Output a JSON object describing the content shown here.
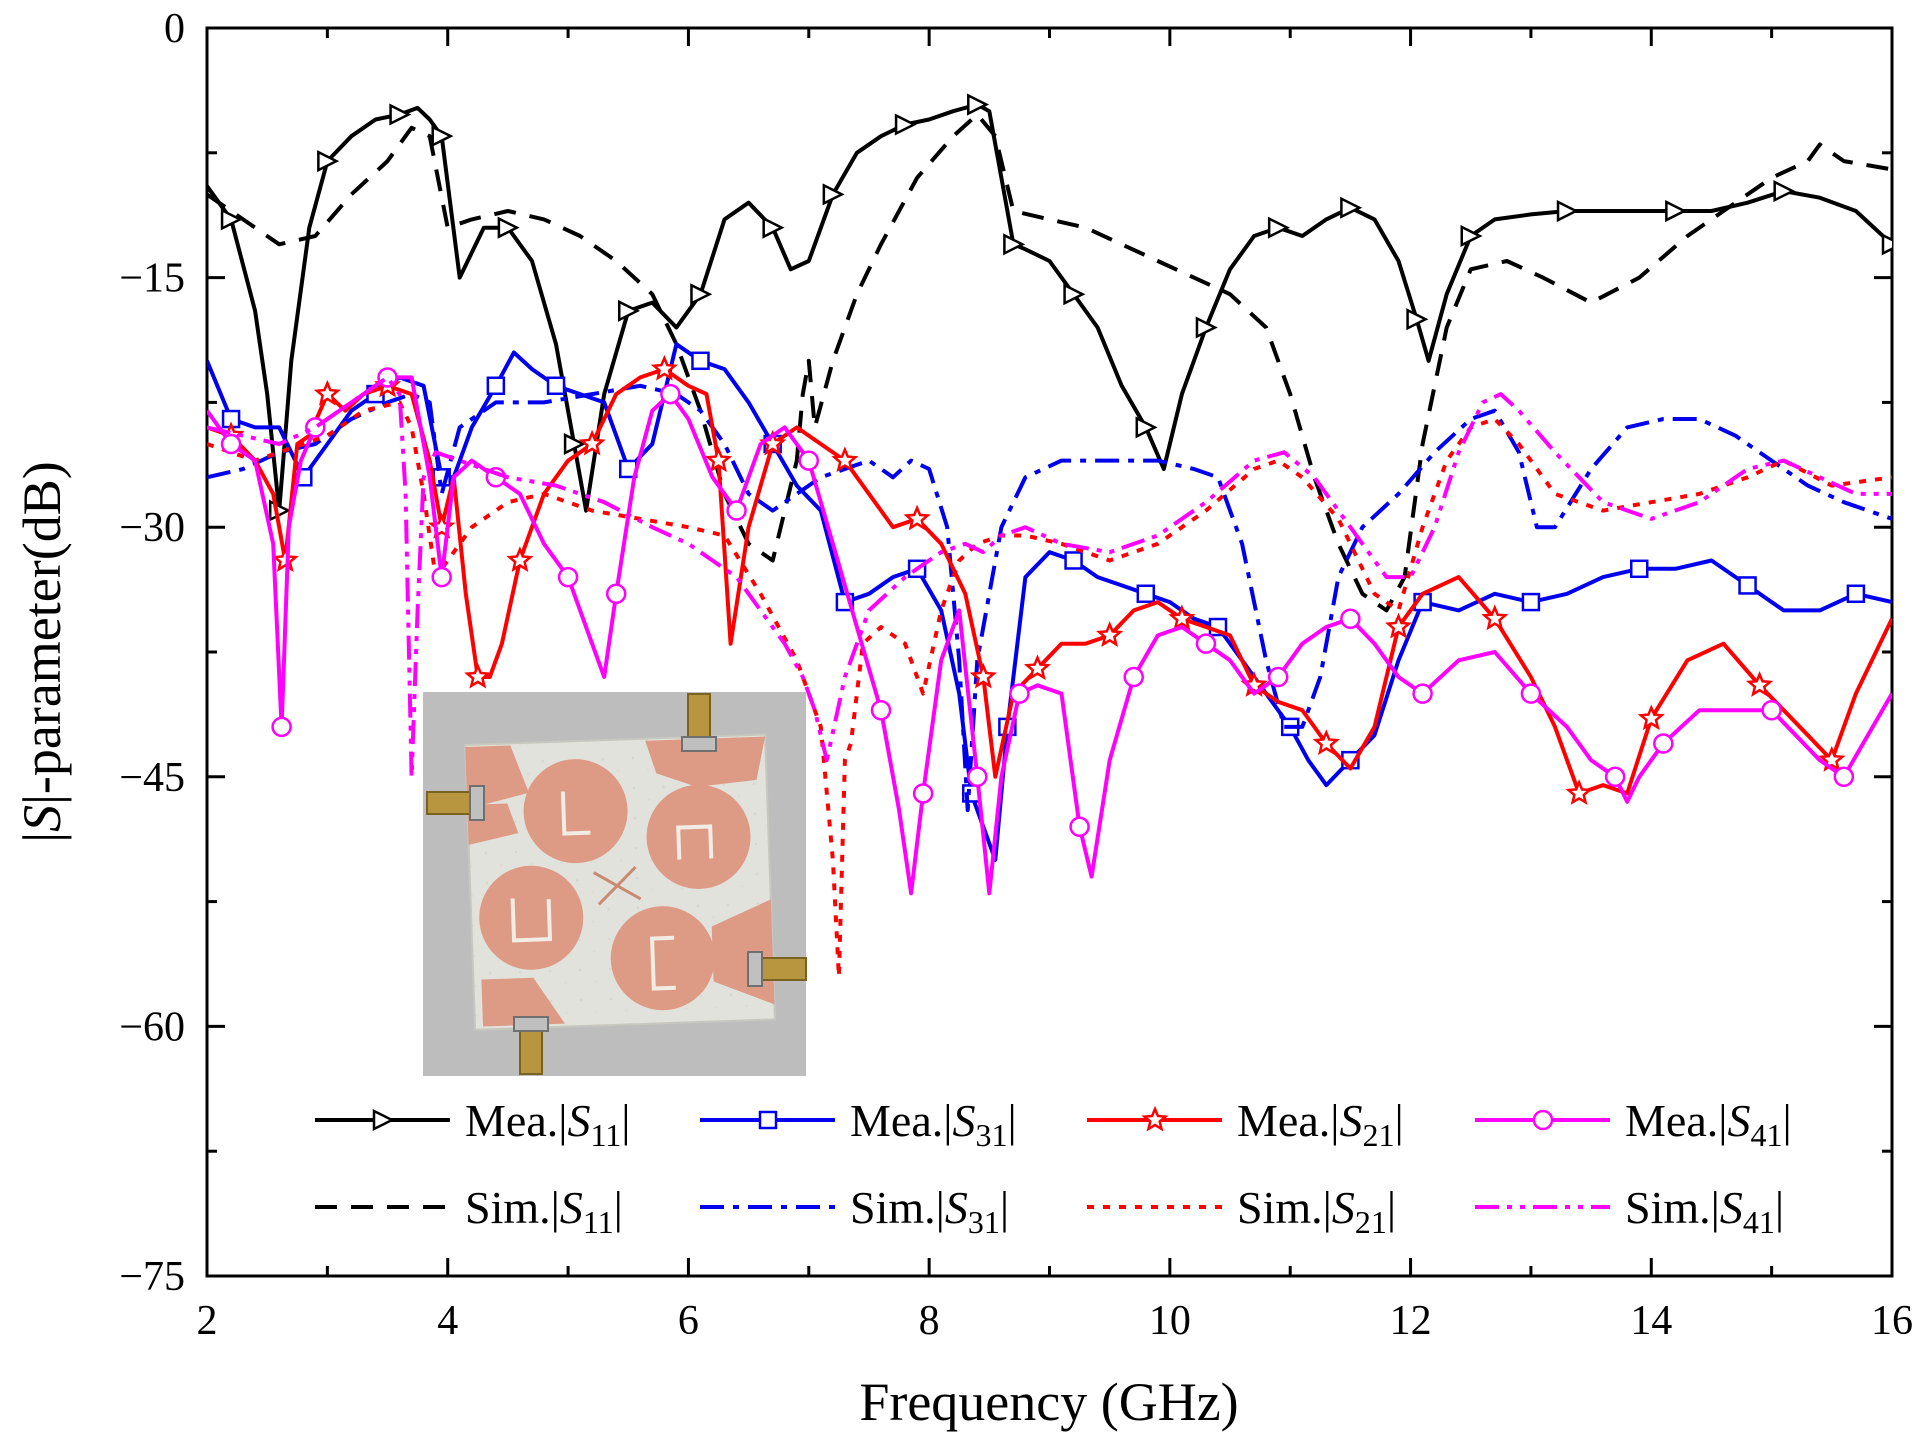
{
  "chart_data": {
    "type": "line",
    "xlabel": "Frequency (GHz)",
    "ylabel_parts": {
      "pre": "|",
      "italic": "S",
      "post": "|-parameter(dB)"
    },
    "xlim": [
      2,
      16
    ],
    "ylim": [
      -75,
      0
    ],
    "xticks": [
      2,
      4,
      6,
      8,
      10,
      12,
      14,
      16
    ],
    "yticks": [
      0,
      -15,
      -30,
      -45,
      -60,
      -75
    ],
    "ytick_labels": [
      "0",
      "−15",
      "−30",
      "−45",
      "−60",
      "−75"
    ],
    "grid": false,
    "legend_position": "bottom-right",
    "inset": "photograph of fabricated four-port antenna",
    "series": [
      {
        "id": "mea_s11",
        "prefix": "Mea.|",
        "sym": "S",
        "sub": "11",
        "suffix": "|",
        "color": "#000000",
        "dash": "solid",
        "marker": "triangle-right",
        "x": [
          2.0,
          2.2,
          2.4,
          2.5,
          2.6,
          2.7,
          2.85,
          3.0,
          3.2,
          3.4,
          3.6,
          3.75,
          3.85,
          3.95,
          4.1,
          4.3,
          4.5,
          4.7,
          4.9,
          5.05,
          5.15,
          5.3,
          5.5,
          5.7,
          5.9,
          6.1,
          6.3,
          6.5,
          6.7,
          6.85,
          7.0,
          7.2,
          7.4,
          7.6,
          7.8,
          8.0,
          8.2,
          8.4,
          8.5,
          8.6,
          8.7,
          8.8,
          9.0,
          9.2,
          9.4,
          9.6,
          9.8,
          9.95,
          10.1,
          10.3,
          10.5,
          10.7,
          10.9,
          11.1,
          11.3,
          11.5,
          11.7,
          11.9,
          12.05,
          12.15,
          12.3,
          12.5,
          12.7,
          13.0,
          13.3,
          13.6,
          13.9,
          14.2,
          14.5,
          14.8,
          15.1,
          15.4,
          15.7,
          16.0
        ],
        "y": [
          -9.5,
          -11.5,
          -17,
          -22,
          -29,
          -20,
          -12,
          -8,
          -6.5,
          -5.5,
          -5.2,
          -4.8,
          -5.5,
          -6.5,
          -15,
          -12,
          -12,
          -14,
          -19,
          -25,
          -29,
          -22,
          -17,
          -16.5,
          -18,
          -16,
          -11.5,
          -10.5,
          -12,
          -14.5,
          -14,
          -10,
          -7.5,
          -6.5,
          -5.8,
          -5.5,
          -5.0,
          -4.6,
          -5.0,
          -9,
          -13,
          -13.3,
          -14,
          -16,
          -18,
          -21.5,
          -24,
          -26.5,
          -22,
          -18,
          -14.5,
          -12.5,
          -12,
          -12.5,
          -11.5,
          -10.8,
          -11.5,
          -14,
          -17.5,
          -20,
          -16,
          -12.5,
          -11.5,
          -11.2,
          -11,
          -11,
          -11,
          -11,
          -11,
          -10.5,
          -9.8,
          -10.2,
          -11,
          -13
        ]
      },
      {
        "id": "sim_s11",
        "prefix": "Sim.|",
        "sym": "S",
        "sub": "11",
        "suffix": "|",
        "color": "#000000",
        "dash": "dash",
        "marker": "none",
        "x": [
          2.0,
          2.3,
          2.6,
          2.9,
          3.2,
          3.5,
          3.7,
          3.85,
          4.0,
          4.2,
          4.5,
          4.8,
          5.1,
          5.4,
          5.7,
          5.9,
          6.1,
          6.3,
          6.5,
          6.7,
          6.9,
          6.95,
          7.0,
          7.05,
          7.2,
          7.4,
          7.6,
          7.9,
          8.2,
          8.4,
          8.55,
          8.7,
          9.0,
          9.3,
          9.6,
          9.9,
          10.2,
          10.5,
          10.8,
          11.0,
          11.2,
          11.4,
          11.6,
          11.8,
          11.95,
          12.1,
          12.3,
          12.5,
          12.8,
          13.1,
          13.5,
          13.9,
          14.3,
          14.7,
          15.0,
          15.3,
          15.4,
          15.6,
          16.0
        ],
        "y": [
          -10,
          -11.5,
          -13,
          -12.5,
          -10,
          -8,
          -6,
          -6.5,
          -12,
          -11.5,
          -11,
          -11.5,
          -12.5,
          -14,
          -16,
          -19,
          -23,
          -28,
          -31,
          -32,
          -26,
          -22,
          -20,
          -24,
          -20,
          -16,
          -13,
          -9,
          -6.5,
          -5.2,
          -6.5,
          -11,
          -11.5,
          -12,
          -13,
          -14,
          -15,
          -16,
          -18,
          -22,
          -27,
          -31,
          -34,
          -35,
          -33,
          -25,
          -18,
          -14.5,
          -14,
          -15,
          -16.5,
          -15,
          -12.5,
          -10.5,
          -9,
          -8,
          -7,
          -8,
          -8.5
        ]
      },
      {
        "id": "mea_s31",
        "prefix": "Mea.|",
        "sym": "S",
        "sub": "31",
        "suffix": "|",
        "color": "#0000ee",
        "dash": "solid",
        "marker": "square",
        "x": [
          2.0,
          2.2,
          2.4,
          2.6,
          2.8,
          3.0,
          3.2,
          3.4,
          3.6,
          3.8,
          3.95,
          4.05,
          4.2,
          4.4,
          4.55,
          4.7,
          4.9,
          5.1,
          5.3,
          5.5,
          5.7,
          5.9,
          6.1,
          6.3,
          6.5,
          6.7,
          6.9,
          7.1,
          7.3,
          7.5,
          7.7,
          7.9,
          8.1,
          8.25,
          8.35,
          8.45,
          8.55,
          8.65,
          8.8,
          9.0,
          9.2,
          9.4,
          9.6,
          9.8,
          10.0,
          10.2,
          10.4,
          10.6,
          10.8,
          11.0,
          11.15,
          11.3,
          11.5,
          11.7,
          11.9,
          12.1,
          12.4,
          12.7,
          13.0,
          13.3,
          13.6,
          13.9,
          14.2,
          14.5,
          14.8,
          15.1,
          15.4,
          15.7,
          16.0
        ],
        "y": [
          -20,
          -23.5,
          -24,
          -24,
          -27,
          -25,
          -23,
          -22,
          -21,
          -21.5,
          -27,
          -27,
          -24,
          -21.5,
          -19.5,
          -20.5,
          -21.5,
          -22,
          -22.5,
          -26.5,
          -25,
          -19,
          -20,
          -20.5,
          -22.5,
          -25,
          -27.5,
          -29,
          -34.5,
          -34,
          -33,
          -32.5,
          -35,
          -40,
          -46,
          -48,
          -50,
          -42,
          -33,
          -31.5,
          -32,
          -33,
          -33.5,
          -34,
          -34.5,
          -35.5,
          -36,
          -38,
          -40,
          -42,
          -44,
          -45.5,
          -44,
          -42.5,
          -38,
          -34.5,
          -35,
          -34,
          -34.5,
          -34,
          -33,
          -32.5,
          -32.5,
          -32,
          -33.5,
          -35,
          -35,
          -34,
          -34.5
        ]
      },
      {
        "id": "sim_s31",
        "prefix": "Sim.|",
        "sym": "S",
        "sub": "31",
        "suffix": "|",
        "color": "#0000ee",
        "dash": "dashdot",
        "marker": "none",
        "x": [
          2.0,
          2.3,
          2.6,
          2.9,
          3.2,
          3.5,
          3.7,
          3.85,
          3.95,
          4.1,
          4.4,
          4.8,
          5.2,
          5.6,
          5.9,
          6.1,
          6.3,
          6.5,
          6.7,
          6.9,
          7.1,
          7.3,
          7.5,
          7.7,
          7.85,
          8.0,
          8.15,
          8.25,
          8.32,
          8.4,
          8.6,
          8.8,
          9.1,
          9.5,
          9.9,
          10.2,
          10.4,
          10.6,
          10.8,
          10.95,
          11.1,
          11.25,
          11.4,
          11.6,
          11.9,
          12.2,
          12.5,
          12.7,
          12.9,
          13.05,
          13.2,
          13.5,
          13.8,
          14.1,
          14.4,
          14.7,
          15.0,
          15.3,
          15.6,
          16.0
        ],
        "y": [
          -27,
          -26.5,
          -25.5,
          -25,
          -23.5,
          -22.5,
          -22,
          -22.5,
          -28,
          -24,
          -22.5,
          -22.5,
          -22,
          -21.5,
          -22,
          -23,
          -25,
          -28,
          -29,
          -28,
          -27,
          -26.5,
          -26,
          -27,
          -26,
          -26.5,
          -30,
          -38,
          -47,
          -38,
          -30,
          -27,
          -26,
          -26,
          -26,
          -26.5,
          -27,
          -31,
          -38,
          -42,
          -42,
          -39,
          -33,
          -30,
          -28,
          -25.5,
          -23.5,
          -23,
          -25.5,
          -30,
          -30,
          -26.5,
          -24,
          -23.5,
          -23.5,
          -24.5,
          -26,
          -27.5,
          -28.5,
          -29.5
        ]
      },
      {
        "id": "mea_s21",
        "prefix": "Mea.|",
        "sym": "S",
        "sub": "21",
        "suffix": "|",
        "color": "#ff0000",
        "dash": "solid",
        "marker": "star",
        "x": [
          2.0,
          2.2,
          2.4,
          2.55,
          2.65,
          2.75,
          2.85,
          3.0,
          3.15,
          3.3,
          3.5,
          3.7,
          3.85,
          3.95,
          4.05,
          4.15,
          4.25,
          4.35,
          4.45,
          4.6,
          4.8,
          5.0,
          5.2,
          5.4,
          5.6,
          5.8,
          6.0,
          6.15,
          6.25,
          6.35,
          6.5,
          6.7,
          6.9,
          7.1,
          7.3,
          7.5,
          7.7,
          7.9,
          8.1,
          8.3,
          8.45,
          8.55,
          8.7,
          8.9,
          9.1,
          9.3,
          9.5,
          9.7,
          9.9,
          10.1,
          10.3,
          10.5,
          10.7,
          10.9,
          11.1,
          11.3,
          11.5,
          11.7,
          11.9,
          12.1,
          12.4,
          12.7,
          13.0,
          13.2,
          13.4,
          13.6,
          13.8,
          14.0,
          14.3,
          14.6,
          14.9,
          15.1,
          15.3,
          15.5,
          15.7,
          16.0
        ],
        "y": [
          -24,
          -24.5,
          -26,
          -28,
          -32,
          -25,
          -24.5,
          -22,
          -23,
          -22,
          -21.5,
          -22,
          -26,
          -30,
          -27,
          -34,
          -39,
          -39,
          -37,
          -32,
          -28,
          -26,
          -25,
          -22,
          -21,
          -20.5,
          -21.5,
          -22,
          -26,
          -37,
          -30,
          -25,
          -24,
          -25,
          -26,
          -28,
          -30,
          -29.5,
          -31,
          -34,
          -39,
          -45,
          -40,
          -38.5,
          -37,
          -37,
          -36.5,
          -35,
          -34.5,
          -35.5,
          -36,
          -36.5,
          -39.5,
          -40.5,
          -41,
          -43,
          -44.5,
          -42,
          -36,
          -34,
          -33,
          -35.5,
          -39,
          -42,
          -46,
          -45.5,
          -46,
          -41.5,
          -38,
          -37,
          -39.5,
          -41,
          -42.5,
          -44,
          -40,
          -35.5
        ]
      },
      {
        "id": "sim_s21",
        "prefix": "Sim.|",
        "sym": "S",
        "sub": "21",
        "suffix": "|",
        "color": "#ff0000",
        "dash": "dot",
        "marker": "none",
        "x": [
          2.0,
          2.2,
          2.4,
          2.6,
          2.8,
          3.0,
          3.3,
          3.6,
          3.7,
          3.8,
          3.9,
          4.0,
          4.2,
          4.5,
          4.8,
          5.2,
          5.6,
          6.0,
          6.3,
          6.6,
          6.9,
          7.1,
          7.2,
          7.25,
          7.3,
          7.35,
          7.45,
          7.6,
          7.8,
          7.95,
          8.1,
          8.25,
          8.4,
          8.6,
          8.8,
          9.1,
          9.5,
          9.9,
          10.3,
          10.7,
          10.9,
          11.1,
          11.4,
          11.7,
          11.9,
          12.1,
          12.3,
          12.5,
          12.7,
          12.9,
          13.2,
          13.6,
          14.0,
          14.4,
          14.8,
          15.1,
          15.5,
          16.0
        ],
        "y": [
          -25,
          -25.5,
          -26,
          -25.5,
          -25,
          -24.5,
          -23,
          -22.5,
          -24,
          -28,
          -33,
          -32,
          -30,
          -28.5,
          -28,
          -29,
          -29.5,
          -30,
          -30.5,
          -34,
          -38,
          -42,
          -50,
          -57,
          -44,
          -43,
          -37,
          -36,
          -37,
          -40,
          -35,
          -32,
          -31,
          -30.5,
          -30.5,
          -31,
          -32,
          -31,
          -29,
          -26.5,
          -26,
          -27,
          -29.5,
          -34,
          -35,
          -30,
          -26,
          -24,
          -23.5,
          -25,
          -28,
          -29,
          -28.5,
          -28,
          -27,
          -26,
          -27.5,
          -27
        ]
      },
      {
        "id": "mea_s41",
        "prefix": "Mea.|",
        "sym": "S",
        "sub": "41",
        "suffix": "|",
        "color": "#ff00ff",
        "dash": "solid",
        "marker": "circle",
        "x": [
          2.0,
          2.2,
          2.4,
          2.55,
          2.62,
          2.68,
          2.78,
          2.9,
          3.1,
          3.3,
          3.5,
          3.7,
          3.85,
          3.95,
          4.05,
          4.2,
          4.4,
          4.6,
          4.8,
          5.0,
          5.2,
          5.3,
          5.4,
          5.55,
          5.7,
          5.85,
          6.0,
          6.2,
          6.4,
          6.6,
          6.8,
          7.0,
          7.2,
          7.4,
          7.6,
          7.75,
          7.85,
          7.95,
          8.1,
          8.25,
          8.4,
          8.5,
          8.6,
          8.75,
          8.9,
          9.1,
          9.25,
          9.35,
          9.5,
          9.7,
          9.9,
          10.1,
          10.3,
          10.5,
          10.7,
          10.9,
          11.1,
          11.3,
          11.5,
          11.7,
          11.9,
          12.1,
          12.4,
          12.7,
          13.0,
          13.3,
          13.5,
          13.7,
          13.8,
          13.9,
          14.1,
          14.4,
          14.7,
          15.0,
          15.2,
          15.4,
          15.6,
          15.8,
          16.0
        ],
        "y": [
          -23,
          -25,
          -26,
          -31,
          -42,
          -30,
          -26,
          -24,
          -23,
          -22,
          -21,
          -21,
          -27,
          -33,
          -27,
          -26,
          -27,
          -28,
          -31,
          -33,
          -37,
          -39,
          -34,
          -27,
          -23,
          -22,
          -23.5,
          -27,
          -29,
          -25,
          -24,
          -26,
          -31,
          -36,
          -41,
          -47,
          -52,
          -46,
          -38,
          -35,
          -45,
          -52,
          -45,
          -40,
          -39.5,
          -40,
          -48,
          -51,
          -44,
          -39,
          -36.5,
          -36,
          -37,
          -38,
          -40,
          -39,
          -37,
          -36,
          -35.5,
          -37,
          -39,
          -40,
          -38,
          -37.5,
          -40,
          -42,
          -44,
          -45,
          -46.5,
          -45,
          -43,
          -41,
          -41,
          -41,
          -42.5,
          -44,
          -45,
          -42.5,
          -40
        ]
      },
      {
        "id": "sim_s41",
        "prefix": "Sim.|",
        "sym": "S",
        "sub": "41",
        "suffix": "|",
        "color": "#ff00ff",
        "dash": "dashdotdot",
        "marker": "none",
        "x": [
          2.0,
          2.3,
          2.6,
          2.9,
          3.2,
          3.5,
          3.6,
          3.65,
          3.7,
          3.75,
          3.8,
          3.9,
          4.1,
          4.5,
          4.9,
          5.3,
          5.7,
          6.0,
          6.2,
          6.4,
          6.6,
          6.8,
          6.95,
          7.05,
          7.15,
          7.3,
          7.5,
          7.8,
          8.1,
          8.3,
          8.45,
          8.6,
          8.8,
          9.1,
          9.5,
          9.9,
          10.3,
          10.7,
          10.95,
          11.2,
          11.5,
          11.8,
          12.0,
          12.2,
          12.4,
          12.6,
          12.75,
          12.9,
          13.2,
          13.6,
          14.0,
          14.4,
          14.8,
          15.1,
          15.4,
          15.7,
          16.0
        ],
        "y": [
          -24,
          -24.5,
          -25,
          -24,
          -22.5,
          -21,
          -22,
          -28,
          -45,
          -35,
          -27,
          -25.5,
          -26,
          -27,
          -27.5,
          -28.5,
          -30,
          -31,
          -32,
          -33,
          -35,
          -37,
          -39,
          -41,
          -44,
          -39,
          -35,
          -33,
          -31.5,
          -31,
          -31.5,
          -30.5,
          -30,
          -31,
          -31.5,
          -30.5,
          -28.5,
          -26,
          -25.5,
          -27,
          -30,
          -33,
          -33,
          -30,
          -25.5,
          -22.5,
          -22,
          -23,
          -25.5,
          -28.5,
          -29.5,
          -28.5,
          -26.5,
          -26,
          -27,
          -28,
          -28
        ]
      }
    ]
  }
}
